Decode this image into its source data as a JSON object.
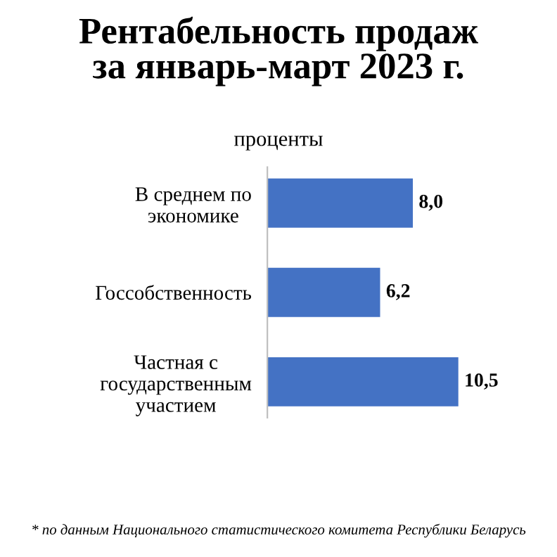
{
  "chart_data": {
    "type": "bar",
    "orientation": "horizontal",
    "title": "Рентабельность продаж\nза январь-март 2023 г.",
    "subtitle": "проценты",
    "categories": [
      "В среднем по\nэкономике",
      "Госсобственность",
      "Частная с\nгосударственным\nучастием"
    ],
    "values": [
      8.0,
      6.2,
      10.5
    ],
    "value_labels": [
      "8,0",
      "6,2",
      "10,5"
    ],
    "color": "#4472c4",
    "tick_labels": "y",
    "grid": false,
    "legend": false,
    "annotations": [
      "* по данным Национального статистического комитета Республики Беларусь"
    ]
  }
}
